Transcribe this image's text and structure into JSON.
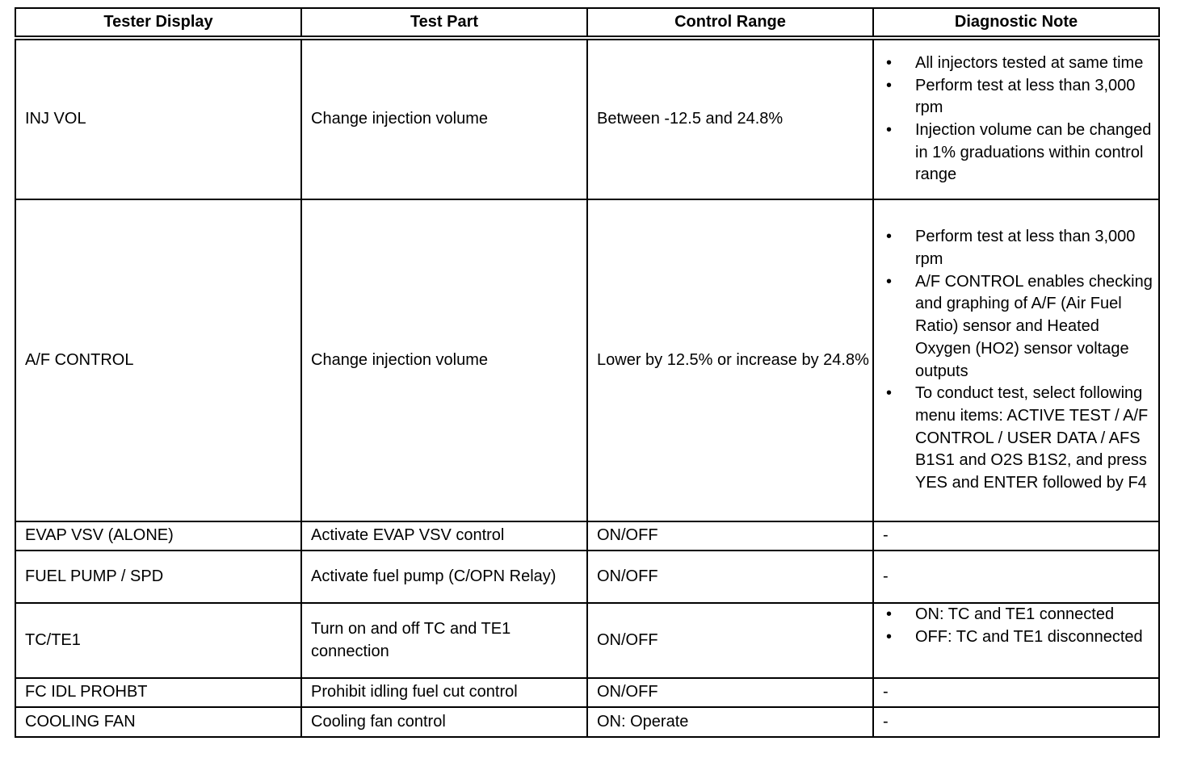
{
  "table": {
    "headers": [
      "Tester Display",
      "Test Part",
      "Control Range",
      "Diagnostic Note"
    ],
    "rows": [
      {
        "display": "INJ VOL",
        "part": "Change injection volume",
        "range": "Between -12.5 and 24.8%",
        "notes": [
          "All injectors tested at same time",
          "Perform test at less than 3,000 rpm",
          "Injection volume can be changed in 1% graduations within control range"
        ]
      },
      {
        "display": "A/F CONTROL",
        "part": "Change injection volume",
        "range": "Lower by 12.5% or increase by 24.8%",
        "notes": [
          "Perform test at less than 3,000 rpm",
          "A/F CONTROL enables checking and graphing of A/F (Air Fuel Ratio) sensor and Heated Oxygen (HO2) sensor voltage outputs",
          "To conduct test, select following menu items: ACTIVE TEST / A/F CONTROL / USER DATA / AFS B1S1 and O2S B1S2, and press YES and ENTER followed by F4"
        ]
      },
      {
        "display": "EVAP VSV (ALONE)",
        "part": "Activate EVAP VSV control",
        "range": "ON/OFF",
        "note_text": "-"
      },
      {
        "display": "FUEL PUMP / SPD",
        "part": "Activate fuel pump (C/OPN Relay)",
        "range": "ON/OFF",
        "note_text": "-"
      },
      {
        "display": "TC/TE1",
        "part": "Turn on and off TC and TE1 connection",
        "range": "ON/OFF",
        "notes": [
          "ON: TC and TE1 connected",
          "OFF: TC and TE1 disconnected"
        ]
      },
      {
        "display": "FC IDL PROHBT",
        "part": "Prohibit idling fuel cut control",
        "range": "ON/OFF",
        "note_text": "-"
      },
      {
        "display": "COOLING FAN",
        "part": "Cooling fan control",
        "range": "ON: Operate",
        "note_text": "-"
      }
    ],
    "bullet_glyph": "•"
  }
}
